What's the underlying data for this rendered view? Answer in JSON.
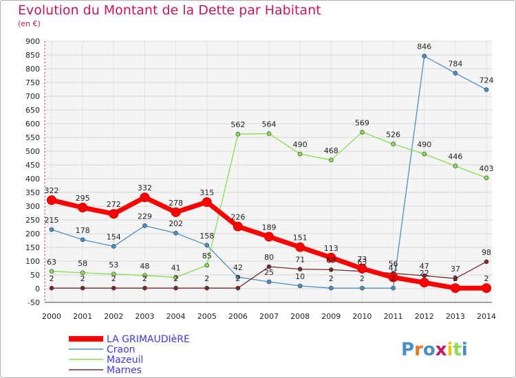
{
  "title": "Evolution du Montant de la Dette par Habitant",
  "subtitle": "(en €)",
  "brand": "Proxiti",
  "chart_data": {
    "type": "line",
    "x": [
      "2000",
      "2001",
      "2002",
      "2003",
      "2004",
      "2005",
      "2006",
      "2007",
      "2008",
      "2009",
      "2010",
      "2011",
      "2012",
      "2013",
      "2014"
    ],
    "ylim": [
      -50,
      900
    ],
    "yticks": [
      -50,
      0,
      50,
      100,
      150,
      200,
      250,
      300,
      350,
      400,
      450,
      500,
      550,
      600,
      650,
      700,
      750,
      800,
      850,
      900
    ],
    "grid": true,
    "legend": "bottom-left",
    "series": [
      {
        "name": "LA GRIMAUDIèRE",
        "color": "#ff0000",
        "width": 7,
        "values": [
          322,
          295,
          272,
          332,
          278,
          315,
          226,
          189,
          151,
          113,
          73,
          41,
          22,
          2,
          2
        ],
        "labels": [
          "322",
          "295",
          "272",
          "332",
          "278",
          "315",
          "226",
          "189",
          "151",
          "113",
          "73",
          "41",
          "22",
          "2",
          "2"
        ]
      },
      {
        "name": "Craon",
        "color": "#4a8ec6",
        "width": 1.3,
        "values": [
          215,
          178,
          154,
          229,
          202,
          158,
          42,
          25,
          10,
          2,
          2,
          2,
          846,
          784,
          724
        ],
        "labels": [
          "215",
          "178",
          "154",
          "229",
          "202",
          "158",
          "42",
          "25",
          "10",
          "2",
          "2",
          "2",
          "846",
          "784",
          "724"
        ]
      },
      {
        "name": "Mazeuil",
        "color": "#88dd55",
        "width": 1.3,
        "values": [
          63,
          58,
          53,
          48,
          41,
          85,
          562,
          564,
          490,
          468,
          569,
          526,
          490,
          446,
          403
        ],
        "labels": [
          "63",
          "58",
          "53",
          "48",
          "41",
          "85",
          "562",
          "564",
          "490",
          "468",
          "569",
          "526",
          "490",
          "446",
          "403"
        ]
      },
      {
        "name": "Marnes",
        "color": "#7a2a2a",
        "width": 1.3,
        "values": [
          2,
          2,
          2,
          2,
          2,
          2,
          2,
          80,
          71,
          69,
          63,
          56,
          47,
          37,
          98
        ],
        "labels": [
          "2",
          "2",
          "2",
          "2",
          "2",
          "2",
          "2",
          "80",
          "71",
          "69",
          "63",
          "56",
          "47",
          "37",
          "98"
        ]
      }
    ]
  }
}
